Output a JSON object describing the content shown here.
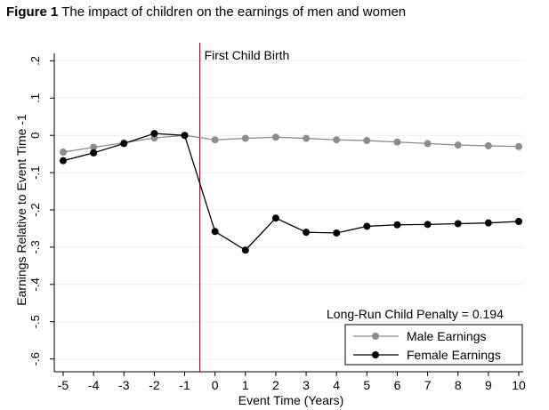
{
  "figure": {
    "label": "Figure 1",
    "title": "The impact of children on the earnings of men and women"
  },
  "chart_data": {
    "type": "line",
    "xlabel": "Event Time (Years)",
    "ylabel": "Earnings Relative to Event Time -1",
    "x": [
      -5,
      -4,
      -3,
      -2,
      -1,
      0,
      1,
      2,
      3,
      4,
      5,
      6,
      7,
      8,
      9,
      10
    ],
    "xlim": [
      -5,
      10
    ],
    "ylim": [
      -0.62,
      0.22
    ],
    "xticks": [
      -5,
      -4,
      -3,
      -2,
      -1,
      0,
      1,
      2,
      3,
      4,
      5,
      6,
      7,
      8,
      9,
      10
    ],
    "xtick_labels": [
      "-5",
      "-4",
      "-3",
      "-2",
      "-1",
      "0",
      "1",
      "2",
      "3",
      "4",
      "5",
      "6",
      "7",
      "8",
      "9",
      "10"
    ],
    "yticks": [
      0.2,
      0.1,
      0,
      -0.1,
      -0.2,
      -0.3,
      -0.4,
      -0.5,
      -0.6
    ],
    "ytick_labels": [
      ".2",
      ".1",
      "0",
      "-.1",
      "-.2",
      "-.3",
      "-.4",
      "-.5",
      "-.6"
    ],
    "grid": true,
    "legend_position": "bottom-right",
    "series": [
      {
        "name": "Male Earnings",
        "color": "#8c8c8c",
        "values": [
          -0.045,
          -0.032,
          -0.02,
          -0.007,
          0.0,
          -0.012,
          -0.008,
          -0.005,
          -0.008,
          -0.012,
          -0.014,
          -0.018,
          -0.022,
          -0.026,
          -0.028,
          -0.03
        ]
      },
      {
        "name": "Female Earnings",
        "color": "#000000",
        "values": [
          -0.068,
          -0.047,
          -0.022,
          0.005,
          0.0,
          -0.258,
          -0.308,
          -0.222,
          -0.26,
          -0.262,
          -0.244,
          -0.24,
          -0.239,
          -0.237,
          -0.235,
          -0.231
        ]
      }
    ],
    "annotations": [
      {
        "type": "vline",
        "x": -0.5,
        "color": "#8b1a3a",
        "label": "First Child Birth"
      }
    ],
    "legend_title": "Long-Run Child Penalty = 0.194"
  }
}
